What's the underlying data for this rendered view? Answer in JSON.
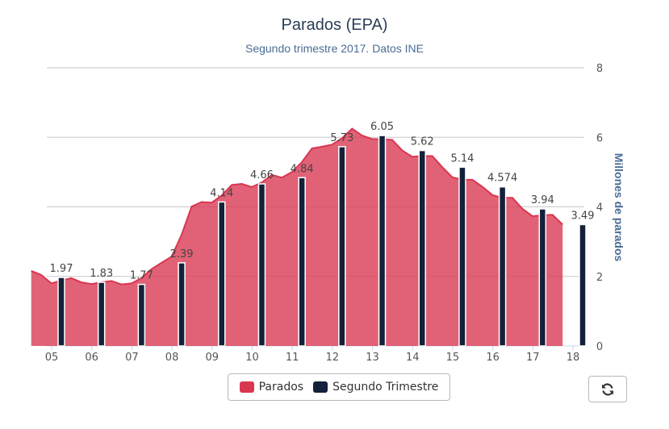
{
  "chart_data": {
    "type": "area",
    "title": "Parados (EPA)",
    "subtitle": "Segundo trimestre 2017. Datos INE",
    "ylabel": "Millones de parados",
    "ylim": [
      0,
      8
    ],
    "y_ticks": [
      "0",
      "2",
      "4",
      "6",
      "8"
    ],
    "x_tick_labels": [
      "05",
      "06",
      "07",
      "08",
      "09",
      "10",
      "11",
      "12",
      "13",
      "14",
      "15",
      "16",
      "17",
      "18"
    ],
    "grid": true,
    "legend_position": "bottom",
    "series": [
      {
        "name": "Parados",
        "color": "#d93650",
        "values": [
          2.16,
          2.04,
          1.8,
          1.88,
          1.95,
          1.83,
          1.78,
          1.83,
          1.87,
          1.77,
          1.8,
          1.95,
          2.21,
          2.39,
          2.57,
          3.2,
          4.01,
          4.14,
          4.12,
          4.33,
          4.63,
          4.66,
          4.57,
          4.7,
          4.92,
          4.84,
          5.0,
          5.29,
          5.68,
          5.73,
          5.79,
          5.97,
          6.25,
          6.05,
          5.95,
          5.94,
          5.93,
          5.62,
          5.44,
          5.46,
          5.46,
          5.14,
          4.85,
          4.78,
          4.78,
          4.574,
          4.34,
          4.26,
          4.26,
          3.94,
          3.73,
          3.76,
          3.77,
          3.49
        ]
      },
      {
        "name": "Segundo Trimestre",
        "color": "#13213a",
        "values": [
          1.97,
          1.83,
          1.77,
          2.39,
          4.14,
          4.66,
          4.84,
          5.73,
          6.05,
          5.62,
          5.14,
          4.574,
          3.94,
          3.49
        ],
        "labels": [
          "1.97",
          "1.83",
          "1.77",
          "2.39",
          "4.14",
          "4.66",
          "4.84",
          "5.73",
          "6.05",
          "5.62",
          "5.14",
          "4.574",
          "3.94",
          "3.49"
        ]
      }
    ]
  },
  "legend": {
    "item1": "Parados",
    "item2": "Segundo Trimestre"
  },
  "icons": {
    "refresh": "refresh-icon"
  }
}
